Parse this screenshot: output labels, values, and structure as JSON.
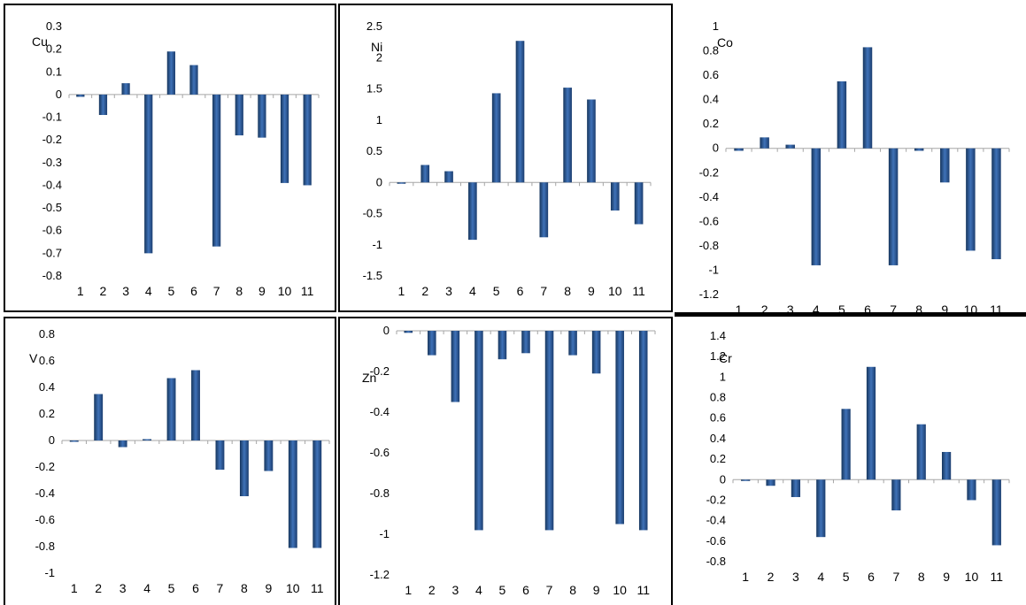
{
  "chart_data": [
    {
      "type": "bar",
      "title": "Cu",
      "categories": [
        "1",
        "2",
        "3",
        "4",
        "5",
        "6",
        "7",
        "8",
        "9",
        "10",
        "11"
      ],
      "values": [
        -0.01,
        -0.09,
        0.05,
        -0.7,
        0.19,
        0.13,
        -0.67,
        -0.18,
        -0.19,
        -0.39,
        -0.4
      ],
      "ylim": [
        -0.8,
        0.3
      ],
      "yticks": [
        "0.3",
        "0.2",
        "0.1",
        "0",
        "-0.1",
        "-0.2",
        "-0.3",
        "-0.4",
        "-0.5",
        "-0.6",
        "-0.7",
        "-0.8"
      ],
      "grid": false
    },
    {
      "type": "bar",
      "title": "Ni",
      "categories": [
        "1",
        "2",
        "3",
        "4",
        "5",
        "6",
        "7",
        "8",
        "9",
        "10",
        "11"
      ],
      "values": [
        -0.02,
        0.28,
        0.18,
        -0.92,
        1.43,
        2.27,
        -0.88,
        1.52,
        1.33,
        -0.45,
        -0.67
      ],
      "ylim": [
        -1.5,
        2.5
      ],
      "yticks": [
        "2.5",
        "2",
        "1.5",
        "1",
        "0.5",
        "0",
        "-0.5",
        "-1",
        "-1.5"
      ],
      "grid": false
    },
    {
      "type": "bar",
      "title": "Co",
      "categories": [
        "1",
        "2",
        "3",
        "4",
        "5",
        "6",
        "7",
        "8",
        "9",
        "10",
        "11"
      ],
      "values": [
        -0.02,
        0.09,
        0.03,
        -0.96,
        0.55,
        0.83,
        -0.96,
        -0.02,
        -0.28,
        -0.84,
        -0.91
      ],
      "ylim": [
        -1.2,
        1
      ],
      "yticks": [
        "1",
        "0.8",
        "0.6",
        "0.4",
        "0.2",
        "0",
        "-0.2",
        "-0.4",
        "-0.6",
        "-0.8",
        "-1",
        "-1.2"
      ],
      "grid": false
    },
    {
      "type": "bar",
      "title": "V",
      "categories": [
        "1",
        "2",
        "3",
        "4",
        "5",
        "6",
        "7",
        "8",
        "9",
        "10",
        "11"
      ],
      "values": [
        -0.01,
        0.35,
        -0.05,
        0.01,
        0.47,
        0.53,
        -0.22,
        -0.42,
        -0.23,
        -0.81,
        -0.81
      ],
      "ylim": [
        -1,
        0.8
      ],
      "yticks": [
        "0.8",
        "0.6",
        "0.4",
        "0.2",
        "0",
        "-0.2",
        "-0.4",
        "-0.6",
        "-0.8",
        "-1"
      ],
      "grid": false
    },
    {
      "type": "bar",
      "title": "Zn",
      "categories": [
        "1",
        "2",
        "3",
        "4",
        "5",
        "6",
        "7",
        "8",
        "9",
        "10",
        "11"
      ],
      "values": [
        -0.01,
        -0.12,
        -0.35,
        -0.98,
        -0.14,
        -0.11,
        -0.98,
        -0.12,
        -0.21,
        -0.95,
        -0.98
      ],
      "ylim": [
        -1.2,
        0
      ],
      "yticks": [
        "0",
        "-0.2",
        "-0.4",
        "-0.6",
        "-0.8",
        "-1",
        "-1.2"
      ],
      "grid": false
    },
    {
      "type": "bar",
      "title": "Cr",
      "categories": [
        "1",
        "2",
        "3",
        "4",
        "5",
        "6",
        "7",
        "8",
        "9",
        "10",
        "11"
      ],
      "values": [
        -0.01,
        -0.06,
        -0.17,
        -0.56,
        0.69,
        1.1,
        -0.3,
        0.54,
        0.27,
        -0.2,
        -0.64
      ],
      "ylim": [
        -0.8,
        1.4
      ],
      "yticks": [
        "1.4",
        "1.2",
        "1",
        "0.8",
        "0.6",
        "0.4",
        "0.2",
        "0",
        "-0.2",
        "-0.4",
        "-0.6",
        "-0.8"
      ],
      "grid": false
    }
  ]
}
